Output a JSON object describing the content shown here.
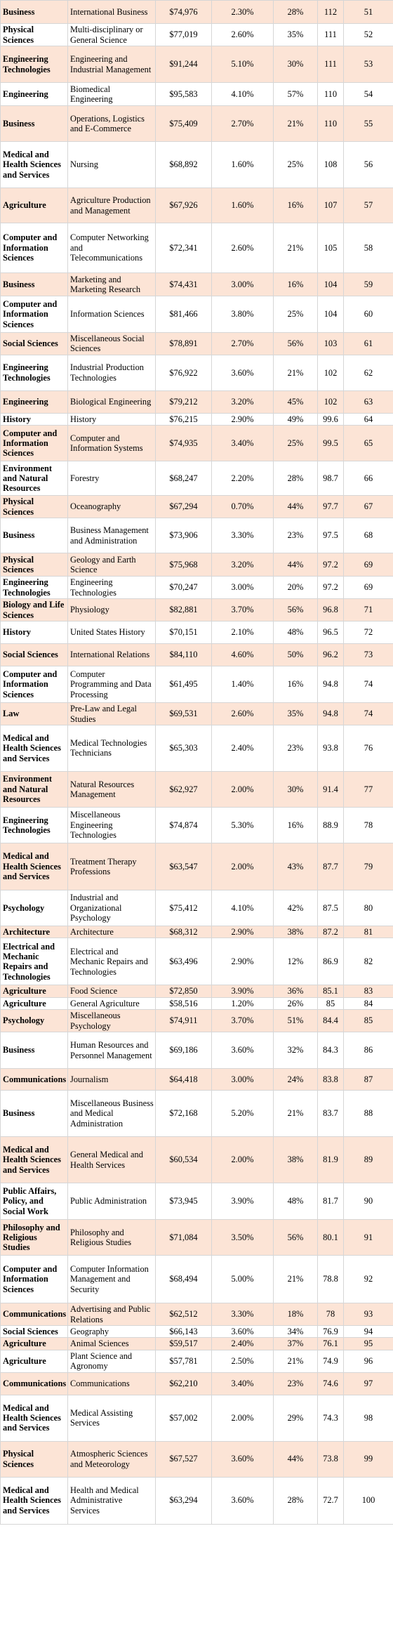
{
  "rows": [
    {
      "category": "Business",
      "major": "International Business",
      "salary": "$74,976",
      "unemployment": "2.30%",
      "percent": "28%",
      "score": "112",
      "rank": "51"
    },
    {
      "category": "Physical Sciences",
      "major": "Multi-disciplinary or General Science",
      "salary": "$77,019",
      "unemployment": "2.60%",
      "percent": "35%",
      "score": "111",
      "rank": "52"
    },
    {
      "category": "Engineering Technologies",
      "major": "Engineering and Industrial Management",
      "salary": "$91,244",
      "unemployment": "5.10%",
      "percent": "30%",
      "score": "111",
      "rank": "53"
    },
    {
      "category": "Engineering",
      "major": "Biomedical Engineering",
      "salary": "$95,583",
      "unemployment": "4.10%",
      "percent": "57%",
      "score": "110",
      "rank": "54"
    },
    {
      "category": "Business",
      "major": "Operations, Logistics and E-Commerce",
      "salary": "$75,409",
      "unemployment": "2.70%",
      "percent": "21%",
      "score": "110",
      "rank": "55"
    },
    {
      "category": "Medical and Health Sciences and Services",
      "major": "Nursing",
      "salary": "$68,892",
      "unemployment": "1.60%",
      "percent": "25%",
      "score": "108",
      "rank": "56"
    },
    {
      "category": "Agriculture",
      "major": "Agriculture Production and Management",
      "salary": "$67,926",
      "unemployment": "1.60%",
      "percent": "16%",
      "score": "107",
      "rank": "57"
    },
    {
      "category": "Computer and Information Sciences",
      "major": "Computer Networking and Telecommunications",
      "salary": "$72,341",
      "unemployment": "2.60%",
      "percent": "21%",
      "score": "105",
      "rank": "58"
    },
    {
      "category": "Business",
      "major": "Marketing and Marketing Research",
      "salary": "$74,431",
      "unemployment": "3.00%",
      "percent": "16%",
      "score": "104",
      "rank": "59"
    },
    {
      "category": "Computer and Information Sciences",
      "major": "Information Sciences",
      "salary": "$81,466",
      "unemployment": "3.80%",
      "percent": "25%",
      "score": "104",
      "rank": "60"
    },
    {
      "category": "Social Sciences",
      "major": "Miscellaneous Social Sciences",
      "salary": "$78,891",
      "unemployment": "2.70%",
      "percent": "56%",
      "score": "103",
      "rank": "61"
    },
    {
      "category": "Engineering Technologies",
      "major": "Industrial Production Technologies",
      "salary": "$76,922",
      "unemployment": "3.60%",
      "percent": "21%",
      "score": "102",
      "rank": "62"
    },
    {
      "category": "Engineering",
      "major": "Biological Engineering",
      "salary": "$79,212",
      "unemployment": "3.20%",
      "percent": "45%",
      "score": "102",
      "rank": "63"
    },
    {
      "category": "History",
      "major": "History",
      "salary": "$76,215",
      "unemployment": "2.90%",
      "percent": "49%",
      "score": "99.6",
      "rank": "64"
    },
    {
      "category": "Computer and Information Sciences",
      "major": "Computer and Information Systems",
      "salary": "$74,935",
      "unemployment": "3.40%",
      "percent": "25%",
      "score": "99.5",
      "rank": "65"
    },
    {
      "category": "Environment and Natural Resources",
      "major": "Forestry",
      "salary": "$68,247",
      "unemployment": "2.20%",
      "percent": "28%",
      "score": "98.7",
      "rank": "66"
    },
    {
      "category": "Physical Sciences",
      "major": "Oceanography",
      "salary": "$67,294",
      "unemployment": "0.70%",
      "percent": "44%",
      "score": "97.7",
      "rank": "67"
    },
    {
      "category": "Business",
      "major": "Business Management and Administration",
      "salary": "$73,906",
      "unemployment": "3.30%",
      "percent": "23%",
      "score": "97.5",
      "rank": "68"
    },
    {
      "category": "Physical Sciences",
      "major": "Geology and Earth Science",
      "salary": "$75,968",
      "unemployment": "3.20%",
      "percent": "44%",
      "score": "97.2",
      "rank": "69"
    },
    {
      "category": "Engineering Technologies",
      "major": "Engineering Technologies",
      "salary": "$70,247",
      "unemployment": "3.00%",
      "percent": "20%",
      "score": "97.2",
      "rank": "69"
    },
    {
      "category": "Biology and Life Sciences",
      "major": "Physiology",
      "salary": "$82,881",
      "unemployment": "3.70%",
      "percent": "56%",
      "score": "96.8",
      "rank": "71"
    },
    {
      "category": "History",
      "major": "United States History",
      "salary": "$70,151",
      "unemployment": "2.10%",
      "percent": "48%",
      "score": "96.5",
      "rank": "72"
    },
    {
      "category": "Social Sciences",
      "major": "International Relations",
      "salary": "$84,110",
      "unemployment": "4.60%",
      "percent": "50%",
      "score": "96.2",
      "rank": "73"
    },
    {
      "category": "Computer and Information Sciences",
      "major": "Computer Programming and Data Processing",
      "salary": "$61,495",
      "unemployment": "1.40%",
      "percent": "16%",
      "score": "94.8",
      "rank": "74"
    },
    {
      "category": "Law",
      "major": "Pre-Law and Legal Studies",
      "salary": "$69,531",
      "unemployment": "2.60%",
      "percent": "35%",
      "score": "94.8",
      "rank": "74"
    },
    {
      "category": "Medical and Health Sciences and Services",
      "major": "Medical Technologies Technicians",
      "salary": "$65,303",
      "unemployment": "2.40%",
      "percent": "23%",
      "score": "93.8",
      "rank": "76"
    },
    {
      "category": "Environment and Natural Resources",
      "major": "Natural Resources Management",
      "salary": "$62,927",
      "unemployment": "2.00%",
      "percent": "30%",
      "score": "91.4",
      "rank": "77"
    },
    {
      "category": "Engineering Technologies",
      "major": "Miscellaneous Engineering Technologies",
      "salary": "$74,874",
      "unemployment": "5.30%",
      "percent": "16%",
      "score": "88.9",
      "rank": "78"
    },
    {
      "category": "Medical and Health Sciences and Services",
      "major": "Treatment Therapy Professions",
      "salary": "$63,547",
      "unemployment": "2.00%",
      "percent": "43%",
      "score": "87.7",
      "rank": "79"
    },
    {
      "category": "Psychology",
      "major": "Industrial and Organizational Psychology",
      "salary": "$75,412",
      "unemployment": "4.10%",
      "percent": "42%",
      "score": "87.5",
      "rank": "80"
    },
    {
      "category": "Architecture",
      "major": "Architecture",
      "salary": "$68,312",
      "unemployment": "2.90%",
      "percent": "38%",
      "score": "87.2",
      "rank": "81"
    },
    {
      "category": "Electrical and Mechanic Repairs and Technologies",
      "major": "Electrical and Mechanic Repairs and Technologies",
      "salary": "$63,496",
      "unemployment": "2.90%",
      "percent": "12%",
      "score": "86.9",
      "rank": "82"
    },
    {
      "category": "Agriculture",
      "major": "Food Science",
      "salary": "$72,850",
      "unemployment": "3.90%",
      "percent": "36%",
      "score": "85.1",
      "rank": "83"
    },
    {
      "category": "Agriculture",
      "major": "General Agriculture",
      "salary": "$58,516",
      "unemployment": "1.20%",
      "percent": "26%",
      "score": "85",
      "rank": "84"
    },
    {
      "category": "Psychology",
      "major": "Miscellaneous Psychology",
      "salary": "$74,911",
      "unemployment": "3.70%",
      "percent": "51%",
      "score": "84.4",
      "rank": "85"
    },
    {
      "category": "Business",
      "major": "Human Resources and Personnel Management",
      "salary": "$69,186",
      "unemployment": "3.60%",
      "percent": "32%",
      "score": "84.3",
      "rank": "86"
    },
    {
      "category": "Communications",
      "major": "Journalism",
      "salary": "$64,418",
      "unemployment": "3.00%",
      "percent": "24%",
      "score": "83.8",
      "rank": "87"
    },
    {
      "category": "Business",
      "major": "Miscellaneous Business and Medical Administration",
      "salary": "$72,168",
      "unemployment": "5.20%",
      "percent": "21%",
      "score": "83.7",
      "rank": "88"
    },
    {
      "category": "Medical and Health Sciences and Services",
      "major": "General Medical and Health Services",
      "salary": "$60,534",
      "unemployment": "2.00%",
      "percent": "38%",
      "score": "81.9",
      "rank": "89"
    },
    {
      "category": "Public Affairs, Policy, and Social Work",
      "major": "Public Administration",
      "salary": "$73,945",
      "unemployment": "3.90%",
      "percent": "48%",
      "score": "81.7",
      "rank": "90"
    },
    {
      "category": "Philosophy and Religious Studies",
      "major": "Philosophy and Religious Studies",
      "salary": "$71,084",
      "unemployment": "3.50%",
      "percent": "56%",
      "score": "80.1",
      "rank": "91"
    },
    {
      "category": "Computer and Information Sciences",
      "major": "Computer Information Management and Security",
      "salary": "$68,494",
      "unemployment": "5.00%",
      "percent": "21%",
      "score": "78.8",
      "rank": "92"
    },
    {
      "category": "Communications",
      "major": "Advertising and Public Relations",
      "salary": "$62,512",
      "unemployment": "3.30%",
      "percent": "18%",
      "score": "78",
      "rank": "93"
    },
    {
      "category": "Social Sciences",
      "major": "Geography",
      "salary": "$66,143",
      "unemployment": "3.60%",
      "percent": "34%",
      "score": "76.9",
      "rank": "94"
    },
    {
      "category": "Agriculture",
      "major": "Animal Sciences",
      "salary": "$59,517",
      "unemployment": "2.40%",
      "percent": "37%",
      "score": "76.1",
      "rank": "95"
    },
    {
      "category": "Agriculture",
      "major": "Plant Science and Agronomy",
      "salary": "$57,781",
      "unemployment": "2.50%",
      "percent": "21%",
      "score": "74.9",
      "rank": "96"
    },
    {
      "category": "Communications",
      "major": "Communications",
      "salary": "$62,210",
      "unemployment": "3.40%",
      "percent": "23%",
      "score": "74.6",
      "rank": "97"
    },
    {
      "category": "Medical and Health Sciences and Services",
      "major": "Medical Assisting Services",
      "salary": "$57,002",
      "unemployment": "2.00%",
      "percent": "29%",
      "score": "74.3",
      "rank": "98"
    },
    {
      "category": "Physical Sciences",
      "major": "Atmospheric Sciences and Meteorology",
      "salary": "$67,527",
      "unemployment": "3.60%",
      "percent": "44%",
      "score": "73.8",
      "rank": "99"
    },
    {
      "category": "Medical and Health Sciences and Services",
      "major": "Health and Medical Administrative Services",
      "salary": "$63,294",
      "unemployment": "3.60%",
      "percent": "28%",
      "score": "72.7",
      "rank": "100"
    }
  ]
}
